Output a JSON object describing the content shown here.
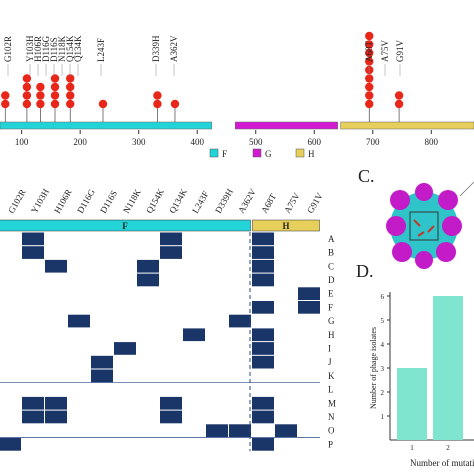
{
  "chart_data": [
    {
      "type": "lollipop",
      "x": [
        72,
        109,
        132,
        157,
        183,
        239,
        332,
        362,
        694,
        745
      ],
      "values": [
        2,
        4,
        3,
        4,
        4,
        1,
        2,
        1,
        9,
        2
      ],
      "color": "#e8261a",
      "xlim": [
        63,
        873
      ],
      "xticks": [
        100,
        200,
        300,
        400,
        500,
        600,
        700,
        800
      ],
      "annotations": [
        "G102R",
        "Y103H",
        "H106R",
        "D116G",
        "D116S",
        "N118K",
        "Q154K",
        "Q134K",
        "L243F",
        "D339H",
        "A362V",
        "A68T",
        "A75V",
        "G91V"
      ],
      "domains": [
        {
          "name": "F",
          "color": "#22d3d8",
          "range": [
            63,
            425
          ]
        },
        {
          "name": "G",
          "color": "#d21ad2",
          "range": [
            465,
            640
          ]
        },
        {
          "name": "H",
          "color": "#e6cf5a",
          "range": [
            645,
            873
          ]
        }
      ]
    },
    {
      "type": "heatmap",
      "columns": [
        "G102R",
        "Y103H",
        "H106R",
        "D116G",
        "D116S",
        "N118K",
        "Q154K",
        "Q134K",
        "L243F",
        "D339H",
        "A362V",
        "A68T",
        "A75V",
        "G91V"
      ],
      "rows": [
        "A",
        "B",
        "C",
        "D",
        "E",
        "F",
        "G",
        "H",
        "I",
        "J",
        "K",
        "L",
        "M",
        "N",
        "O",
        "P"
      ],
      "groups": [
        {
          "name": "F",
          "color": "#22d3d8"
        },
        {
          "name": "H",
          "color": "#e6cf5a"
        }
      ],
      "color": "#1a3568",
      "values": [
        [
          0,
          1,
          0,
          0,
          0,
          0,
          0,
          1,
          0,
          0,
          0,
          1,
          0,
          0
        ],
        [
          0,
          1,
          0,
          0,
          0,
          0,
          0,
          1,
          0,
          0,
          0,
          1,
          0,
          0
        ],
        [
          0,
          0,
          1,
          0,
          0,
          0,
          1,
          0,
          0,
          0,
          0,
          1,
          0,
          0
        ],
        [
          0,
          0,
          0,
          0,
          0,
          0,
          1,
          0,
          0,
          0,
          0,
          1,
          0,
          0
        ],
        [
          0,
          0,
          0,
          0,
          0,
          0,
          0,
          0,
          0,
          0,
          0,
          0,
          0,
          1
        ],
        [
          0,
          0,
          0,
          0,
          0,
          0,
          0,
          0,
          0,
          0,
          0,
          1,
          0,
          1
        ],
        [
          0,
          0,
          0,
          1,
          0,
          0,
          0,
          0,
          0,
          0,
          1,
          0,
          0,
          0
        ],
        [
          0,
          0,
          0,
          0,
          0,
          0,
          0,
          0,
          1,
          0,
          0,
          1,
          0,
          0
        ],
        [
          0,
          0,
          0,
          0,
          0,
          1,
          0,
          0,
          0,
          0,
          0,
          1,
          0,
          0
        ],
        [
          0,
          0,
          0,
          0,
          1,
          0,
          0,
          0,
          0,
          0,
          0,
          1,
          0,
          0
        ],
        [
          0,
          0,
          0,
          0,
          1,
          0,
          0,
          0,
          0,
          0,
          0,
          0,
          0,
          0
        ],
        [
          0,
          0,
          0,
          0,
          0,
          0,
          0,
          0,
          0,
          0,
          0,
          0,
          0,
          0
        ],
        [
          0,
          1,
          1,
          0,
          0,
          0,
          0,
          1,
          0,
          0,
          0,
          1,
          0,
          0
        ],
        [
          0,
          1,
          1,
          0,
          0,
          0,
          0,
          1,
          0,
          0,
          0,
          1,
          0,
          0
        ],
        [
          0,
          0,
          0,
          0,
          0,
          0,
          0,
          0,
          0,
          1,
          1,
          0,
          1,
          0
        ],
        [
          1,
          0,
          0,
          0,
          0,
          0,
          0,
          0,
          0,
          0,
          0,
          1,
          0,
          0
        ]
      ]
    },
    {
      "type": "bar",
      "panel": "D.",
      "categories": [
        "1",
        "2"
      ],
      "values": [
        3,
        6
      ],
      "color": "#7fe5cf",
      "ylim": [
        0,
        6
      ],
      "yticks": [
        1,
        2,
        3,
        4,
        5,
        6
      ],
      "ylabel": "Number of phage isolates",
      "xlabel": "Number of mutations"
    }
  ],
  "panel_c": {
    "label": "C."
  }
}
